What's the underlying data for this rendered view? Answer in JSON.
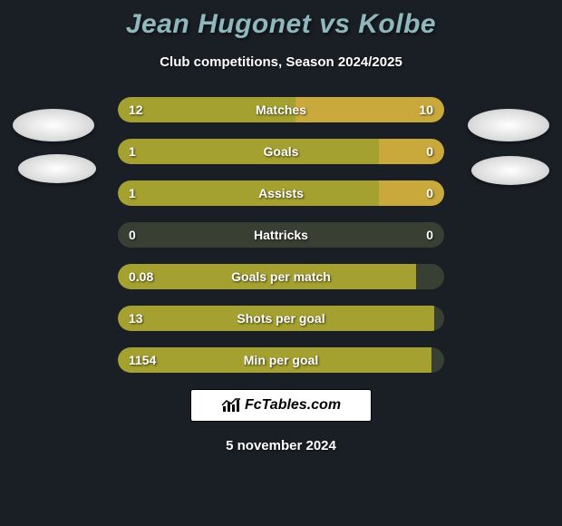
{
  "title": "Jean Hugonet vs Kolbe",
  "subtitle": "Club competitions, Season 2024/2025",
  "date": "5 november 2024",
  "brand": "FcTables.com",
  "colors": {
    "background": "#1a1f25",
    "title_color": "#8fb8bd",
    "bar_bg": "#3a3f33",
    "bar_left": "#a5a131",
    "bar_right": "#c9a83c",
    "text": "#ffffff"
  },
  "font": {
    "title_size": 30,
    "subtitle_size": 15,
    "bar_label_size": 14,
    "date_size": 15
  },
  "stats": [
    {
      "label": "Matches",
      "left_val": "12",
      "right_val": "10",
      "left_pct": 54.5,
      "right_pct": 45.5
    },
    {
      "label": "Goals",
      "left_val": "1",
      "right_val": "0",
      "left_pct": 80.0,
      "right_pct": 20.0
    },
    {
      "label": "Assists",
      "left_val": "1",
      "right_val": "0",
      "left_pct": 80.0,
      "right_pct": 20.0
    },
    {
      "label": "Hattricks",
      "left_val": "0",
      "right_val": "0",
      "left_pct": 0.0,
      "right_pct": 0.0
    },
    {
      "label": "Goals per match",
      "left_val": "0.08",
      "right_val": "",
      "left_pct": 91.5,
      "right_pct": 0.0
    },
    {
      "label": "Shots per goal",
      "left_val": "13",
      "right_val": "",
      "left_pct": 97.0,
      "right_pct": 0.0
    },
    {
      "label": "Min per goal",
      "left_val": "1154",
      "right_val": "",
      "left_pct": 96.0,
      "right_pct": 0.0
    }
  ]
}
